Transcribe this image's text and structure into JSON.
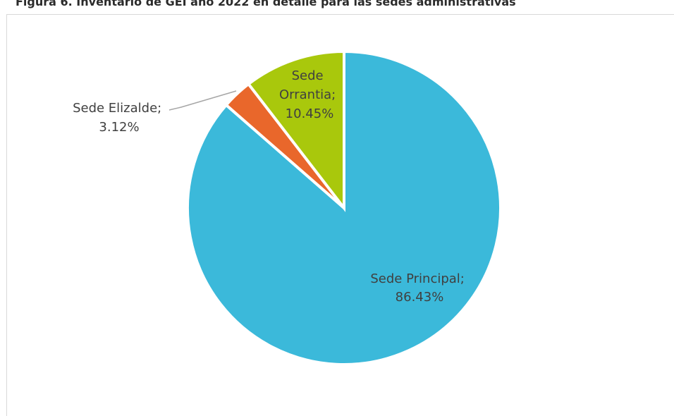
{
  "title": "Figura 6. Inventario de GEI año 2022 en detalle para las sedes administrativas",
  "chart_data": {
    "type": "pie",
    "title": "Figura 6. Inventario de GEI año 2022 en detalle para las sedes administrativas",
    "start_angle_deg": 0,
    "direction": "clockwise",
    "slices": [
      {
        "name": "Sede Principal",
        "value": 86.43,
        "label_lines": [
          "Sede Principal;",
          "86.43%"
        ],
        "color": "#3bb9da"
      },
      {
        "name": "Sede Elizalde",
        "value": 3.12,
        "label_lines": [
          "Sede Elizalde;",
          "3.12%"
        ],
        "color": "#e9672b"
      },
      {
        "name": "Sede Orrantia",
        "value": 10.45,
        "label_lines": [
          "Sede",
          "Orrantia;",
          "10.45%"
        ],
        "color": "#a9c80c"
      }
    ]
  }
}
